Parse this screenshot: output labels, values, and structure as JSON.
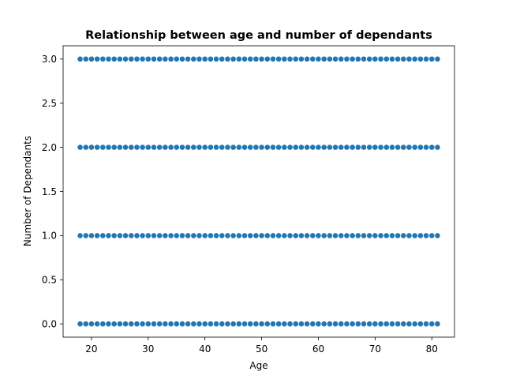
{
  "chart_data": {
    "type": "scatter",
    "title": "Relationship between age and number of dependants",
    "xlabel": "Age",
    "ylabel": "Number of Dependants",
    "xlim": [
      15,
      84
    ],
    "ylim": [
      -0.15,
      3.15
    ],
    "xticks": [
      20,
      30,
      40,
      50,
      60,
      70,
      80
    ],
    "xtick_labels": [
      "20",
      "30",
      "40",
      "50",
      "60",
      "70",
      "80"
    ],
    "yticks": [
      0,
      0.5,
      1,
      1.5,
      2,
      2.5,
      3
    ],
    "ytick_labels": [
      "0.0",
      "0.5",
      "1.0",
      "1.5",
      "2.0",
      "2.5",
      "3.0"
    ],
    "grid": false,
    "legend": false,
    "marker_color": "#1f77b4",
    "series": [
      {
        "x_start": 18,
        "x_end": 81,
        "x_step": 1,
        "y_levels": [
          0,
          1,
          2,
          3
        ]
      }
    ]
  }
}
